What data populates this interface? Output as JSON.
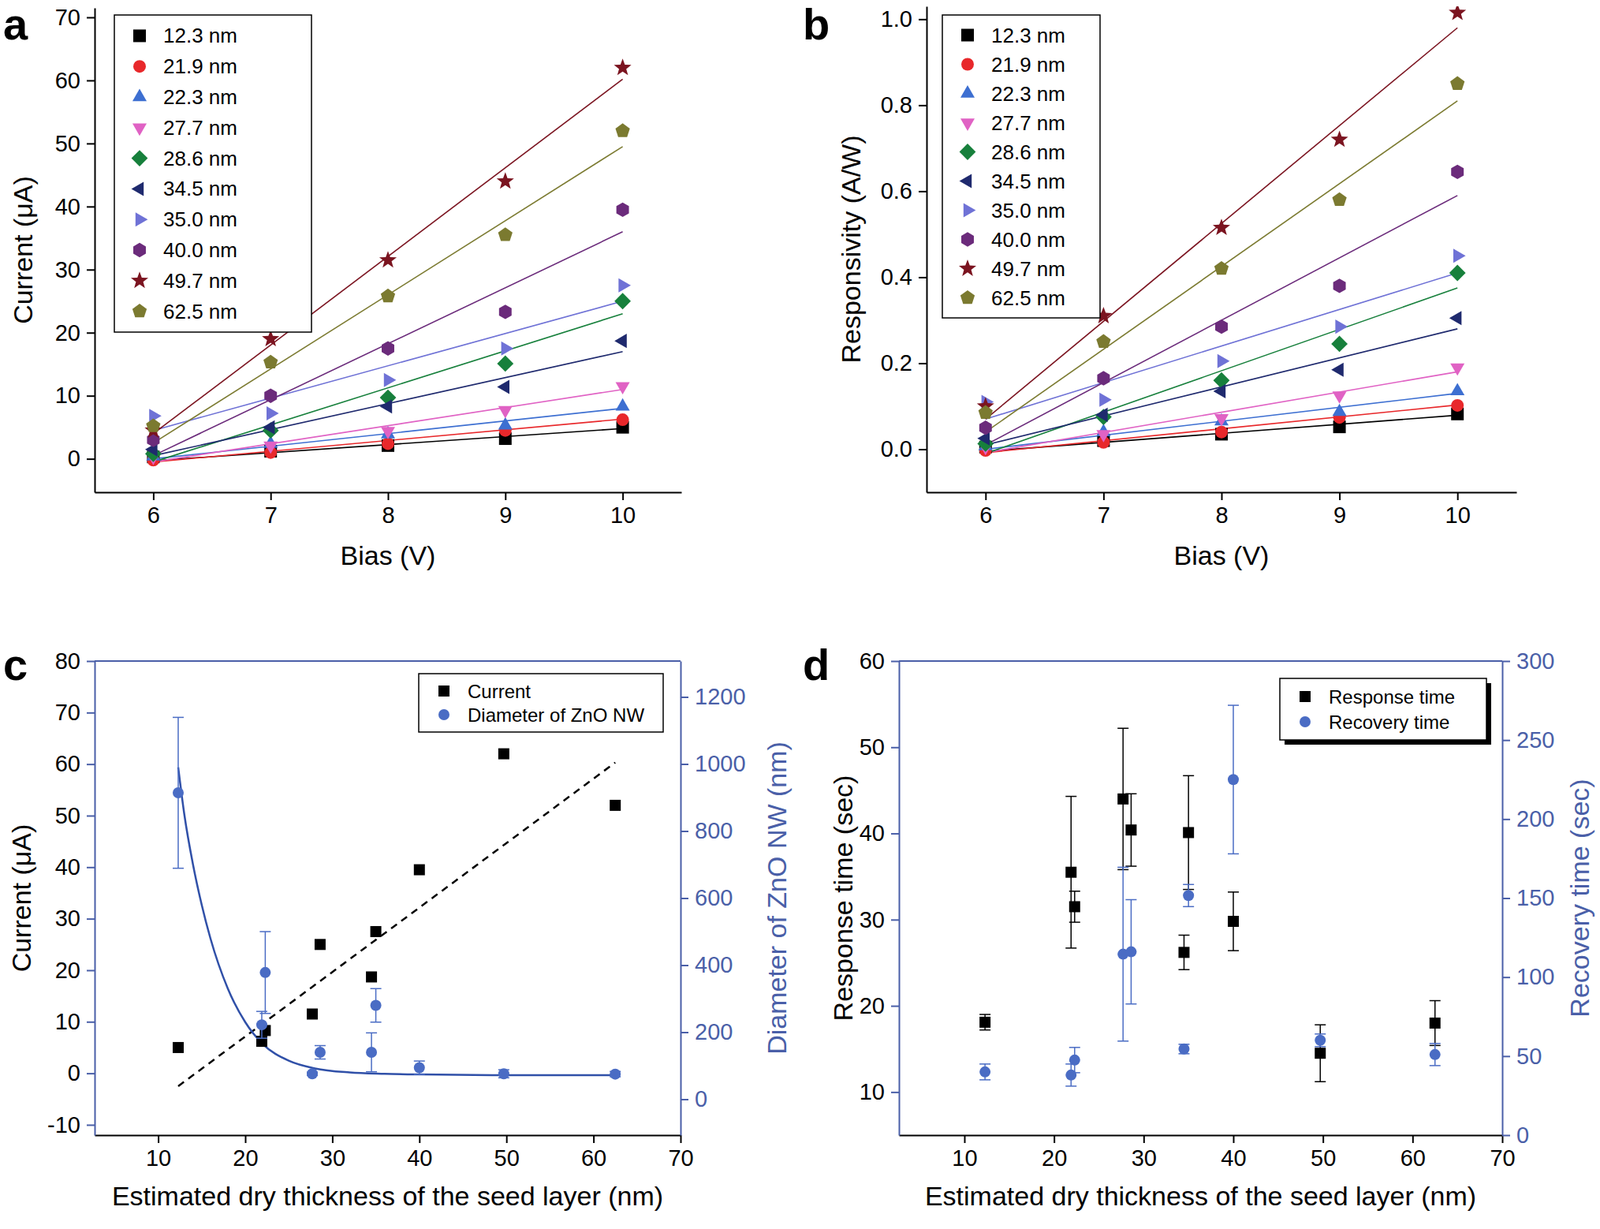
{
  "chart_data": [
    {
      "type": "scatter",
      "label": "a",
      "x_label": "Bias (V)",
      "y_label": "Current (μA)",
      "x": [
        6,
        7,
        8,
        9,
        10
      ],
      "xlim": [
        5.5,
        10.5
      ],
      "xticks": [
        6,
        7,
        8,
        9,
        10
      ],
      "ylim": [
        -5.3,
        71.5
      ],
      "yticks": [
        0,
        10,
        20,
        30,
        40,
        50,
        60,
        70
      ],
      "legend": "upper left",
      "fit_x": [
        6,
        10
      ],
      "series": [
        {
          "name": "12.3 nm",
          "color": "#000000",
          "marker": "square",
          "values": [
            0.3,
            1.2,
            2.1,
            3.2,
            5.0
          ],
          "fit_values": [
            -0.3,
            4.8
          ]
        },
        {
          "name": "21.9 nm",
          "color": "#e8282b",
          "marker": "circle",
          "values": [
            -0.2,
            1.0,
            2.4,
            4.5,
            6.2
          ],
          "fit_values": [
            -0.5,
            6.3
          ]
        },
        {
          "name": "22.3 nm",
          "color": "#3d6fd1",
          "marker": "triangle-up",
          "values": [
            0.4,
            2.4,
            3.9,
            5.3,
            8.3
          ],
          "fit_values": [
            0.0,
            8.0
          ]
        },
        {
          "name": "27.7 nm",
          "color": "#e062c4",
          "marker": "triangle-down",
          "values": [
            0.3,
            2.1,
            4.4,
            7.7,
            11.5
          ],
          "fit_values": [
            -0.5,
            11.0
          ]
        },
        {
          "name": "28.6 nm",
          "color": "#17803c",
          "marker": "diamond",
          "values": [
            0.8,
            4.5,
            9.7,
            15.1,
            25.0
          ],
          "fit_values": [
            -0.5,
            23.0
          ]
        },
        {
          "name": "34.5 nm",
          "color": "#1f2a6e",
          "marker": "triangle-left",
          "values": [
            1.5,
            5.0,
            8.3,
            11.4,
            18.7
          ],
          "fit_values": [
            0.5,
            17.0
          ]
        },
        {
          "name": "35.0 nm",
          "color": "#6f72d6",
          "marker": "triangle-right",
          "values": [
            6.8,
            7.2,
            12.5,
            17.5,
            27.5
          ],
          "fit_values": [
            4.5,
            25.0
          ]
        },
        {
          "name": "40.0 nm",
          "color": "#6b2b7b",
          "marker": "hexagon",
          "values": [
            3.0,
            10.0,
            17.5,
            23.3,
            39.5
          ],
          "fit_values": [
            0.5,
            36.0
          ]
        },
        {
          "name": "49.7 nm",
          "color": "#7b1420",
          "marker": "star",
          "values": [
            4.5,
            19.0,
            31.5,
            44.0,
            62.0
          ],
          "fit_values": [
            4.0,
            60.2
          ]
        },
        {
          "name": "62.5 nm",
          "color": "#7b7a30",
          "marker": "pentagon",
          "values": [
            5.2,
            15.3,
            25.8,
            35.5,
            52.0
          ],
          "fit_values": [
            2.5,
            49.5
          ]
        }
      ]
    },
    {
      "type": "scatter",
      "label": "b",
      "x_label": "Bias (V)",
      "y_label": "Responsivity (A/W)",
      "x": [
        6,
        7,
        8,
        9,
        10
      ],
      "xlim": [
        5.5,
        10.5
      ],
      "xticks": [
        6,
        7,
        8,
        9,
        10
      ],
      "ylim": [
        -0.1,
        1.03
      ],
      "yticks": [
        {
          "value": 0,
          "label": "0.0"
        },
        0.2,
        0.4,
        0.6,
        0.8,
        {
          "value": 1,
          "label": "1.0"
        }
      ],
      "legend": "upper left",
      "fit_x": [
        6,
        10
      ],
      "series": [
        {
          "name": "12.3 nm",
          "color": "#000000",
          "marker": "square",
          "values": [
            0.005,
            0.02,
            0.035,
            0.052,
            0.082
          ],
          "fit_values": [
            -0.005,
            0.079
          ]
        },
        {
          "name": "21.9 nm",
          "color": "#e8282b",
          "marker": "circle",
          "values": [
            -0.003,
            0.016,
            0.04,
            0.074,
            0.102
          ],
          "fit_values": [
            -0.008,
            0.103
          ]
        },
        {
          "name": "22.3 nm",
          "color": "#3d6fd1",
          "marker": "triangle-up",
          "values": [
            0.007,
            0.04,
            0.065,
            0.087,
            0.135
          ],
          "fit_values": [
            0.0,
            0.13
          ]
        },
        {
          "name": "27.7 nm",
          "color": "#e062c4",
          "marker": "triangle-down",
          "values": [
            0.005,
            0.035,
            0.072,
            0.125,
            0.19
          ],
          "fit_values": [
            -0.008,
            0.18
          ]
        },
        {
          "name": "28.6 nm",
          "color": "#17803c",
          "marker": "diamond",
          "values": [
            0.013,
            0.075,
            0.16,
            0.245,
            0.41
          ],
          "fit_values": [
            -0.01,
            0.375
          ]
        },
        {
          "name": "34.5 nm",
          "color": "#1f2a6e",
          "marker": "triangle-left",
          "values": [
            0.025,
            0.08,
            0.135,
            0.185,
            0.305
          ],
          "fit_values": [
            0.01,
            0.28
          ]
        },
        {
          "name": "35.0 nm",
          "color": "#6f72d6",
          "marker": "triangle-right",
          "values": [
            0.11,
            0.115,
            0.205,
            0.285,
            0.45
          ],
          "fit_values": [
            0.07,
            0.41
          ]
        },
        {
          "name": "40.0 nm",
          "color": "#6b2b7b",
          "marker": "hexagon",
          "values": [
            0.05,
            0.165,
            0.285,
            0.38,
            0.645
          ],
          "fit_values": [
            0.01,
            0.59
          ]
        },
        {
          "name": "49.7 nm",
          "color": "#7b1420",
          "marker": "star",
          "values": [
            0.1,
            0.31,
            0.515,
            0.72,
            1.015
          ],
          "fit_values": [
            0.07,
            0.98
          ]
        },
        {
          "name": "62.5 nm",
          "color": "#7b7a30",
          "marker": "pentagon",
          "values": [
            0.085,
            0.25,
            0.42,
            0.58,
            0.85
          ],
          "fit_values": [
            0.04,
            0.81
          ]
        }
      ]
    },
    {
      "type": "scatter",
      "label": "c",
      "x_label": "Estimated dry thickness of the seed layer (nm)",
      "y_label": "Current (μA)",
      "y2_label": "Diameter of ZnO NW (nm)",
      "x": [
        12.3,
        21.9,
        22.3,
        27.7,
        28.6,
        34.5,
        35.0,
        40.0,
        49.7,
        62.5
      ],
      "xlim": [
        2.7,
        70
      ],
      "xticks": [
        10,
        20,
        30,
        40,
        50,
        60,
        70
      ],
      "ylim": [
        -12,
        80
      ],
      "yticks": [
        -10,
        0,
        10,
        20,
        30,
        40,
        50,
        60,
        70,
        80
      ],
      "y2lim": [
        -107,
        1307
      ],
      "y2ticks": [
        0,
        200,
        400,
        600,
        800,
        1000,
        1200
      ],
      "legend": "upper right",
      "series": [
        {
          "name": "Current",
          "color": "#000000",
          "marker": "square",
          "values": [
            5.0,
            6.2,
            8.3,
            11.5,
            25.0,
            18.7,
            27.5,
            39.5,
            62.0,
            52.0
          ]
        },
        {
          "name": "Diameter of ZnO NW",
          "color": "#4a6cc4",
          "marker": "circle",
          "axis": "y2",
          "values": [
            914,
            222,
            378,
            76,
            140,
            140,
            280,
            94,
            76,
            75
          ],
          "errors": [
            225,
            40,
            122,
            5,
            20,
            58,
            50,
            20,
            12,
            8
          ]
        }
      ],
      "fit_lines": [
        {
          "x": [
            12.3,
            62.5
          ],
          "values": [
            -2.5,
            60.3
          ],
          "color": "#000000",
          "line_style": "dashed"
        },
        {
          "x": [
            12.3,
            13,
            14,
            15,
            16,
            18,
            20,
            22,
            25,
            28,
            32,
            36,
            40,
            50,
            62.5
          ],
          "values": [
            990,
            850,
            700,
            580,
            480,
            330,
            230,
            165,
            115,
            92,
            80,
            76,
            74,
            72,
            72
          ],
          "axis": "y2",
          "color": "#3050a8",
          "line_style": "solid"
        }
      ]
    },
    {
      "type": "scatter",
      "label": "d",
      "x_label": "Estimated dry thickness of the seed layer (nm)",
      "y_label": "Response time (sec)",
      "y2_label": "Recovery time (sec)",
      "x": [
        12.3,
        21.9,
        22.3,
        27.7,
        28.6,
        34.5,
        35.0,
        40.0,
        49.7,
        62.5
      ],
      "xlim": [
        2.7,
        70
      ],
      "xticks": [
        10,
        20,
        30,
        40,
        50,
        60,
        70
      ],
      "ylim": [
        5,
        60
      ],
      "yticks": [
        10,
        20,
        30,
        40,
        50,
        60
      ],
      "y2lim": [
        0,
        300
      ],
      "y2ticks": [
        0,
        50,
        100,
        150,
        200,
        250,
        300
      ],
      "legend": "upper right",
      "series": [
        {
          "name": "Response time",
          "color": "#000000",
          "marker": "square",
          "values": [
            18.1,
            35.5,
            31.5,
            44.0,
            40.4,
            26.2,
            40.1,
            29.8,
            14.5,
            18.0
          ],
          "errors": [
            0.9,
            8.8,
            1.8,
            8.2,
            4.2,
            2.0,
            6.6,
            3.4,
            3.3,
            2.6
          ]
        },
        {
          "name": "Recovery time",
          "color": "#4a6cc4",
          "marker": "circle",
          "axis": "y2",
          "values": [
            40,
            38,
            47.5,
            114.5,
            116,
            54.5,
            151.6,
            225,
            60,
            51
          ],
          "errors": [
            5,
            7,
            8,
            55,
            33,
            3,
            7,
            47,
            4,
            7
          ]
        }
      ]
    }
  ]
}
